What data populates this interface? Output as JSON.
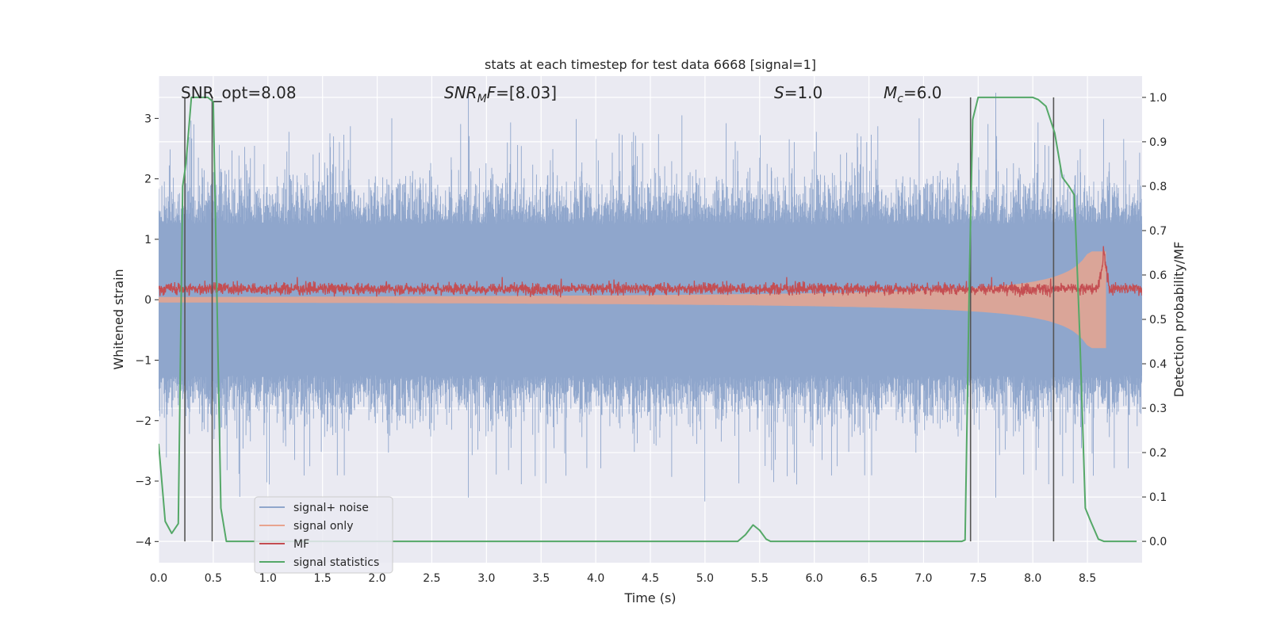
{
  "chart_data": {
    "type": "line",
    "title": "stats at each timestep for test data 6668 [signal=1]",
    "xlabel": "Time (s)",
    "ylabel": "Whitened strain",
    "y2label": "Detection probability/MF",
    "xlim": [
      0.0,
      9.0
    ],
    "ylim": [
      -4.35,
      3.7
    ],
    "y2lim": [
      -0.048,
      1.048
    ],
    "x_ticks": [
      "0.0",
      "0.5",
      "1.0",
      "1.5",
      "2.0",
      "2.5",
      "3.0",
      "3.5",
      "4.0",
      "4.5",
      "5.0",
      "5.5",
      "6.0",
      "6.5",
      "7.0",
      "7.5",
      "8.0",
      "8.5"
    ],
    "y_ticks": [
      "3",
      "2",
      "1",
      "0",
      "−1",
      "−2",
      "−3",
      "−4"
    ],
    "y2_ticks": [
      "1.0",
      "0.9",
      "0.8",
      "0.7",
      "0.6",
      "0.5",
      "0.4",
      "0.3",
      "0.2",
      "0.1",
      "0.0"
    ],
    "annotations": {
      "snr_opt": "SNR_opt=8.08",
      "snr_mf_main": "SNR",
      "snr_mf_sub": "M",
      "snr_mf_rest": "F=[8.03]",
      "s_main": "S",
      "s_rest": "=1.0",
      "mc_main": "M",
      "mc_sub": "c",
      "mc_rest": "=6.0"
    },
    "legend": {
      "position": "lower-left",
      "entries": [
        "signal+ noise",
        "signal only",
        "MF",
        "signal statistics"
      ]
    },
    "colors": {
      "noise": "#8fa6cc",
      "signal_only": "#e8a48e",
      "mf": "#c44e52",
      "statistic": "#55a868",
      "marker": "#555555",
      "background": "#eaeaf2",
      "grid": "#ffffff"
    },
    "detection_markers_s": [
      0.24,
      0.49,
      7.43,
      8.19
    ],
    "series": [
      {
        "name": "signal statistics",
        "axis": "right",
        "x": [
          0.0,
          0.06,
          0.12,
          0.18,
          0.22,
          0.25,
          0.3,
          0.4,
          0.45,
          0.5,
          0.57,
          0.62,
          1.0,
          2.0,
          3.0,
          4.0,
          5.0,
          5.3,
          5.37,
          5.44,
          5.5,
          5.56,
          5.6,
          6.0,
          7.0,
          7.35,
          7.38,
          7.42,
          7.45,
          7.5,
          7.8,
          8.0,
          8.05,
          8.12,
          8.2,
          8.27,
          8.33,
          8.38,
          8.43,
          8.48,
          8.53,
          8.6,
          8.65,
          8.95
        ],
        "values": [
          0.22,
          0.045,
          0.018,
          0.04,
          0.8,
          0.85,
          1.0,
          1.0,
          1.0,
          0.99,
          0.075,
          0.0,
          0.0,
          0.0,
          0.0,
          0.0,
          0.0,
          0.0,
          0.015,
          0.037,
          0.025,
          0.005,
          0.0,
          0.0,
          0.0,
          0.0,
          0.003,
          0.6,
          0.95,
          1.0,
          1.0,
          1.0,
          0.995,
          0.98,
          0.92,
          0.82,
          0.8,
          0.78,
          0.46,
          0.075,
          0.045,
          0.005,
          0.0,
          0.0
        ]
      }
    ]
  }
}
